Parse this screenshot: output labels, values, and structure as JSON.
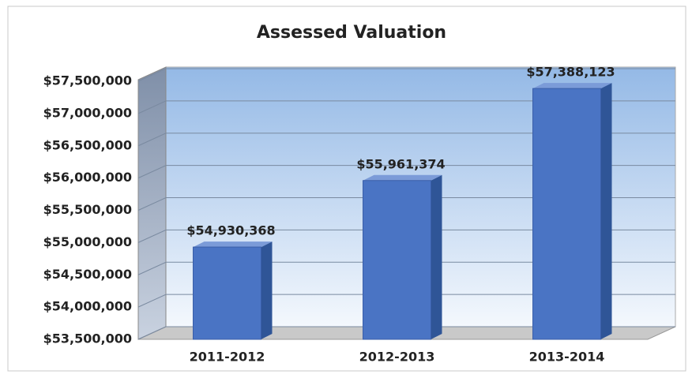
{
  "chart_data": {
    "type": "bar",
    "title": "Assessed Valuation",
    "categories": [
      "2011-2012",
      "2012-2013",
      "2013-2014"
    ],
    "values": [
      54930368,
      55961374,
      57388123
    ],
    "value_labels": [
      "$54,930,368",
      "$55,961,374",
      "$57,388,123"
    ],
    "color": "#4a74c4",
    "ylim": [
      53500000,
      57500000
    ],
    "yticks": [
      {
        "value": 53500000,
        "label": "$53,500,000"
      },
      {
        "value": 54000000,
        "label": "$54,000,000"
      },
      {
        "value": 54500000,
        "label": "$54,500,000"
      },
      {
        "value": 55000000,
        "label": "$55,000,000"
      },
      {
        "value": 55500000,
        "label": "$55,500,000"
      },
      {
        "value": 56000000,
        "label": "$56,000,000"
      },
      {
        "value": 56500000,
        "label": "$56,500,000"
      },
      {
        "value": 57000000,
        "label": "$57,000,000"
      },
      {
        "value": 57500000,
        "label": "$57,500,000"
      }
    ],
    "grid": true
  }
}
